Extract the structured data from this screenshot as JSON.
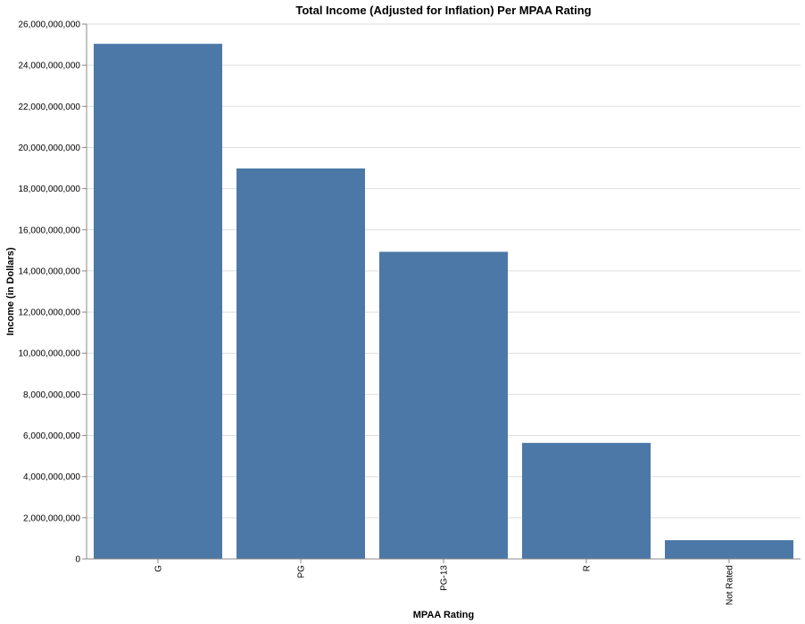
{
  "chart_data": {
    "type": "bar",
    "title": "Total Income (Adjusted for Inflation) Per MPAA Rating",
    "xlabel": "MPAA Rating",
    "ylabel": "Income (in Dollars)",
    "categories": [
      "G",
      "PG",
      "PG-13",
      "R",
      "Not Rated"
    ],
    "values": [
      25040000000,
      18980000000,
      14930000000,
      5640000000,
      910000000
    ],
    "ylim": [
      0,
      26000000000
    ],
    "yticks": [
      "0",
      "2,000,000,000",
      "4,000,000,000",
      "6,000,000,000",
      "8,000,000,000",
      "10,000,000,000",
      "12,000,000,000",
      "14,000,000,000",
      "16,000,000,000",
      "18,000,000,000",
      "20,000,000,000",
      "22,000,000,000",
      "24,000,000,000",
      "26,000,000,000"
    ],
    "grid": true,
    "bar_color": "#4c78a8"
  }
}
